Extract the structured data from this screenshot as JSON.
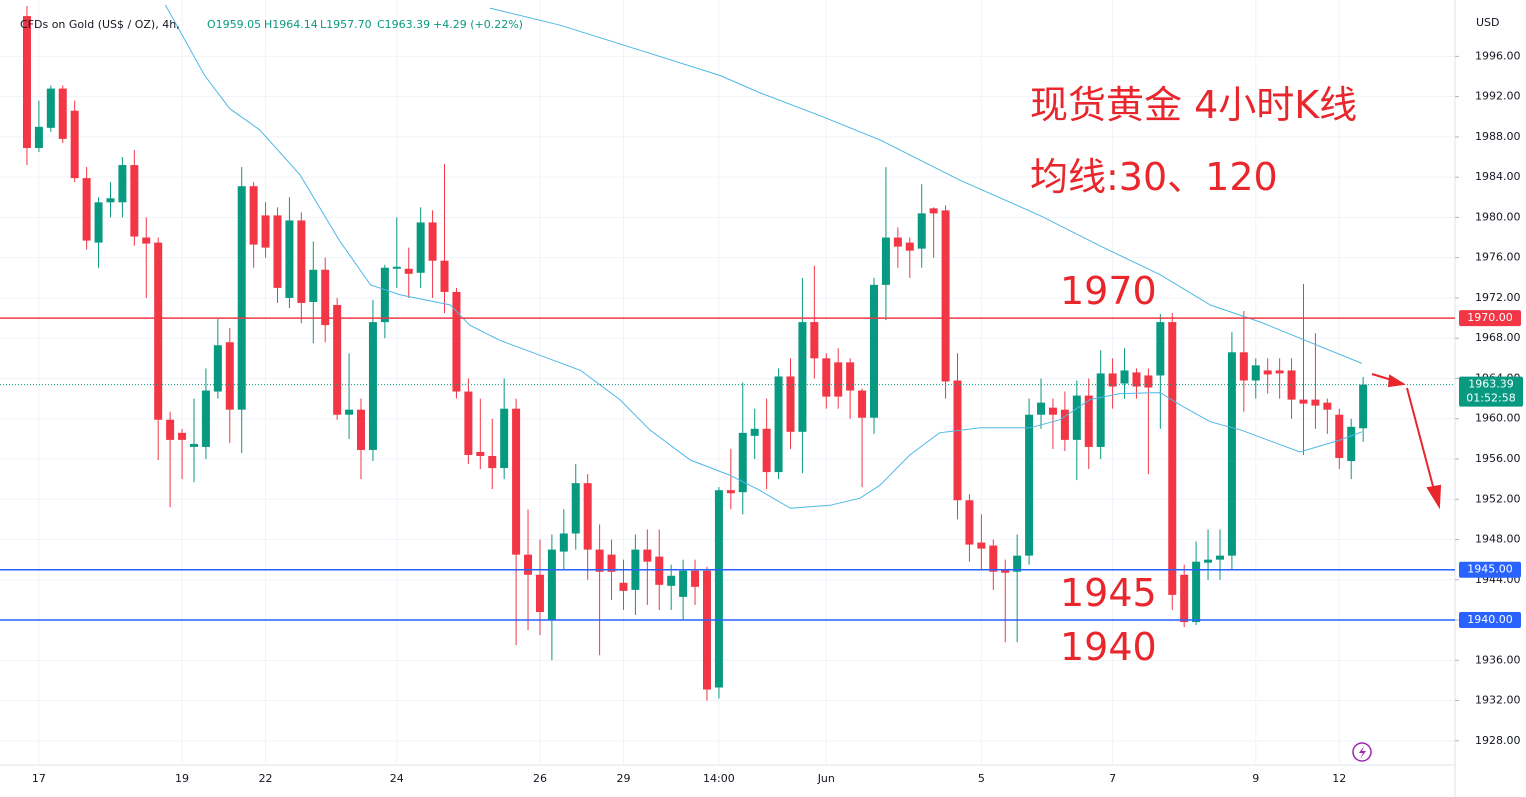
{
  "chart_data": {
    "type": "candlestick",
    "title": "CFDs on Gold (US$ / OZ), 4h,",
    "ohlc_legend": [
      "O1959.05",
      "H1964.14",
      "L1957.70",
      "C1963.39",
      "+4.29 (+0.22%)"
    ],
    "currency": "USD",
    "annotations": [
      "现货黄金 4小时K线",
      "均线:30、120",
      "1970",
      "1945",
      "1940"
    ],
    "up_color": "#089981",
    "down_color": "#f23645",
    "open": [
      2000,
      1986.9,
      1988.9,
      1992.8,
      1990.6,
      1983.9,
      1977.5,
      1981.5,
      1981.5,
      1985.2,
      1978,
      1977.5,
      1959.9,
      1958.6,
      1957.2,
      1957.2,
      1962.7,
      1967.6,
      1960.9,
      1983.1,
      1980.2,
      1980.2,
      1972,
      1979.7,
      1971.6,
      1974.8,
      1971.3,
      1960.4,
      1960.9,
      1956.9,
      1969.6,
      1974.9,
      1974.9,
      1974.5,
      1979.5,
      1975.7,
      1972.6,
      1962.7,
      1956.7,
      1956.3,
      1955.1,
      1961,
      1946.5,
      1944.5,
      1940,
      1946.8,
      1948.6,
      1953.6,
      1947,
      1946.5,
      1943.7,
      1943,
      1947,
      1946.3,
      1943.4,
      1942.3,
      1944.9,
      1944.9,
      1933.3,
      1952.9,
      1952.7,
      1958.3,
      1959,
      1954.7,
      1964.2,
      1958.7,
      1969.6,
      1966,
      1965.6,
      1965.6,
      1962.8,
      1960.1,
      1973.3,
      1978,
      1977.5,
      1976.9,
      1980.9,
      1980.7,
      1963.8,
      1951.9,
      1947.7,
      1947.4,
      1945,
      1944.8,
      1946.4,
      1960.4,
      1961.1,
      1960.9,
      1957.9,
      1962.3,
      1957.2,
      1964.5,
      1963.5,
      1964.6,
      1964.3,
      1964.3,
      1969.6,
      1944.5,
      1939.8,
      1945.7,
      1946,
      1946.4,
      1966.6,
      1963.8,
      1964.8,
      1964.8,
      1964.8,
      1961.9,
      1961.9,
      1961.6,
      1960.4,
      1955.8,
      1959.05
    ],
    "close": [
      1986.9,
      1989,
      1992.8,
      1987.8,
      1983.9,
      1977.7,
      1981.5,
      1981.9,
      1985.2,
      1978.1,
      1977.4,
      1959.9,
      1957.9,
      1957.9,
      1957.5,
      1962.8,
      1967.3,
      1960.9,
      1983.1,
      1977.3,
      1977,
      1973,
      1979.7,
      1971.5,
      1974.8,
      1969.3,
      1960.4,
      1960.9,
      1956.9,
      1969.6,
      1975,
      1975.1,
      1974.4,
      1979.5,
      1975.7,
      1972.6,
      1962.7,
      1956.4,
      1956.3,
      1955.1,
      1961,
      1946.5,
      1944.5,
      1940.8,
      1947,
      1948.6,
      1953.6,
      1947,
      1944.8,
      1944.8,
      1942.9,
      1947,
      1945.8,
      1943.5,
      1944.4,
      1944.9,
      1943.3,
      1933.1,
      1952.9,
      1952.6,
      1958.6,
      1959,
      1954.7,
      1964.2,
      1958.7,
      1969.6,
      1966,
      1962.2,
      1962.2,
      1962.8,
      1960.1,
      1973.3,
      1978,
      1977.1,
      1976.7,
      1980.4,
      1980.4,
      1963.7,
      1951.9,
      1947.5,
      1947.1,
      1944.8,
      1944.7,
      1946.4,
      1960.4,
      1961.6,
      1960.4,
      1957.9,
      1962.3,
      1957.2,
      1964.5,
      1963.2,
      1964.8,
      1963.2,
      1963.1,
      1969.6,
      1942.5,
      1939.8,
      1945.8,
      1946,
      1946.4,
      1966.6,
      1963.8,
      1965.3,
      1964.4,
      1964.5,
      1961.9,
      1961.5,
      1961.3,
      1960.9,
      1956.1,
      1959.2,
      1963.39
    ],
    "high": [
      2001,
      1991.6,
      1993.1,
      1993.1,
      1991.6,
      1985,
      1982,
      1983.5,
      1986,
      1986.7,
      1980,
      1978,
      1960.7,
      1959,
      1962,
      1965,
      1969.9,
      1969,
      1985,
      1983.5,
      1981.5,
      1981,
      1982,
      1980.5,
      1977.6,
      1976,
      1972,
      1966.5,
      1962,
      1971.8,
      1975.3,
      1980,
      1977,
      1981,
      1980.7,
      1985.3,
      1973,
      1964,
      1962,
      1960,
      1964,
      1962,
      1951,
      1948,
      1948.5,
      1951,
      1955.5,
      1954.5,
      1949.5,
      1948,
      1946,
      1948.5,
      1949,
      1949,
      1945.5,
      1946,
      1946,
      1945.3,
      1953.2,
      1957,
      1963.6,
      1961,
      1962,
      1965,
      1966,
      1974,
      1975.2,
      1966.5,
      1967,
      1966,
      1963,
      1974,
      1985,
      1979,
      1978,
      1983.3,
      1981,
      1981.2,
      1966.5,
      1952.5,
      1950.5,
      1948,
      1946,
      1948.5,
      1962,
      1964,
      1962,
      1962.7,
      1963.8,
      1964,
      1966.8,
      1966,
      1967,
      1965,
      1965,
      1970.4,
      1970.5,
      1945.5,
      1947.8,
      1949,
      1949,
      1968.6,
      1970.7,
      1966,
      1966,
      1966,
      1966,
      1973.4,
      1968.5,
      1962,
      1961,
      1960,
      1964.14
    ],
    "low": [
      1985.2,
      1986.5,
      1988.5,
      1987.4,
      1983.5,
      1976.8,
      1975,
      1980,
      1980,
      1977.2,
      1972,
      1955.9,
      1951.2,
      1954,
      1953.7,
      1956,
      1962,
      1957.6,
      1956.6,
      1975,
      1976,
      1971.5,
      1971,
      1969.5,
      1967.5,
      1967.6,
      1959.9,
      1958,
      1954,
      1955.8,
      1968,
      1973,
      1972,
      1973,
      1972,
      1970.5,
      1962,
      1955.5,
      1955,
      1953,
      1954,
      1937.5,
      1939,
      1938.5,
      1936,
      1945,
      1947,
      1944,
      1936.5,
      1942,
      1941,
      1940.5,
      1941.5,
      1941,
      1941,
      1940,
      1941.5,
      1932,
      1932.2,
      1951,
      1950.5,
      1956,
      1953,
      1954,
      1957,
      1954.6,
      1964,
      1961,
      1961,
      1960,
      1953.2,
      1958.5,
      1969.8,
      1975,
      1974,
      1975,
      1976,
      1962,
      1950,
      1945.8,
      1945,
      1943,
      1937.8,
      1937.8,
      1945.5,
      1959,
      1957,
      1956.8,
      1953.9,
      1955,
      1956,
      1961,
      1962,
      1962,
      1954.5,
      1959,
      1941,
      1939.3,
      1939.5,
      1944,
      1944,
      1945,
      1960.7,
      1962,
      1962.5,
      1962,
      1960,
      1956.4,
      1959,
      1958.5,
      1955,
      1954,
      1957.7
    ],
    "moving_averages": [
      {
        "color": "#4fb8e6",
        "x": [
          11.6,
          14.9,
          17.0,
          19.5,
          22.9,
          26.2,
          28.8,
          31.3,
          35.5,
          37.1,
          39.6,
          43.0,
          46.4,
          49.7,
          52.2,
          55.6,
          58.9,
          61.4,
          64.0,
          67.3,
          69.8,
          71.5,
          74.0,
          76.5,
          79.9,
          84.1,
          86.6,
          89.1,
          91.6,
          95.0,
          96.6,
          99.2,
          101.7,
          106.7,
          110.1,
          111.9
        ],
        "values": [
          2001.1,
          1994.1,
          1990.8,
          1988.7,
          1984.2,
          1977.7,
          1973.3,
          1972.3,
          1971.3,
          1969.3,
          1967.8,
          1966.3,
          1964.8,
          1961.9,
          1958.9,
          1955.9,
          1954.4,
          1952.9,
          1951.1,
          1951.4,
          1952.1,
          1953.4,
          1956.4,
          1958.6,
          1959.1,
          1959.1,
          1959.9,
          1961.9,
          1962.5,
          1962.6,
          1961.4,
          1959.7,
          1958.9,
          1956.7,
          1957.9,
          1958.7
        ]
      },
      {
        "color": "#4fb8e6",
        "x": [
          38.8,
          44.7,
          51.4,
          58.1,
          61.4,
          66.5,
          71.5,
          78.2,
          84.9,
          89.9,
          95.0,
          99.2,
          103.4,
          106.7,
          111.9
        ],
        "values": [
          2000.8,
          1999.1,
          1996.6,
          1994.1,
          1992.4,
          1990.1,
          1987.7,
          1983.7,
          1980.2,
          1977.2,
          1974.3,
          1971.3,
          1969.6,
          1968.0,
          1965.5
        ]
      }
    ],
    "levels": [
      {
        "value": 1970,
        "label": "1970.00",
        "color": "#f23645"
      },
      {
        "value": 1945,
        "label": "1945.00",
        "color": "#2962ff"
      },
      {
        "value": 1940,
        "label": "1940.00",
        "color": "#2962ff"
      }
    ],
    "last_price": {
      "value": 1963.39,
      "countdown": "01:52:58"
    },
    "xlim": [
      -2.26,
      119.7
    ],
    "ylim": [
      1925.6,
      2001.6
    ],
    "xticks": [
      {
        "value": 1,
        "label": "17"
      },
      {
        "value": 13,
        "label": "19"
      },
      {
        "value": 20,
        "label": "22"
      },
      {
        "value": 31,
        "label": "24"
      },
      {
        "value": 43,
        "label": "26"
      },
      {
        "value": 50,
        "label": "29"
      },
      {
        "value": 58,
        "label": "14:00"
      },
      {
        "value": 67,
        "label": "Jun"
      },
      {
        "value": 80,
        "label": "5"
      },
      {
        "value": 91,
        "label": "7"
      },
      {
        "value": 103,
        "label": "9"
      },
      {
        "value": 110,
        "label": "12"
      }
    ],
    "yticks": [
      {
        "value": 1928,
        "label": "1928.00"
      },
      {
        "value": 1932,
        "label": "1932.00"
      },
      {
        "value": 1936,
        "label": "1936.00"
      },
      {
        "value": 1940,
        "label": "1940.00"
      },
      {
        "value": 1944,
        "label": "1944.00"
      },
      {
        "value": 1948,
        "label": "1948.00"
      },
      {
        "value": 1952,
        "label": "1952.00"
      },
      {
        "value": 1956,
        "label": "1956.00"
      },
      {
        "value": 1960,
        "label": "1960.00"
      },
      {
        "value": 1964,
        "label": "1964.00"
      },
      {
        "value": 1968,
        "label": "1968.00"
      },
      {
        "value": 1972,
        "label": "1972.00"
      },
      {
        "value": 1976,
        "label": "1976.00"
      },
      {
        "value": 1980,
        "label": "1980.00"
      },
      {
        "value": 1984,
        "label": "1984.00"
      },
      {
        "value": 1988,
        "label": "1988.00"
      },
      {
        "value": 1992,
        "label": "1992.00"
      },
      {
        "value": 1996,
        "label": "1996.00"
      }
    ]
  }
}
